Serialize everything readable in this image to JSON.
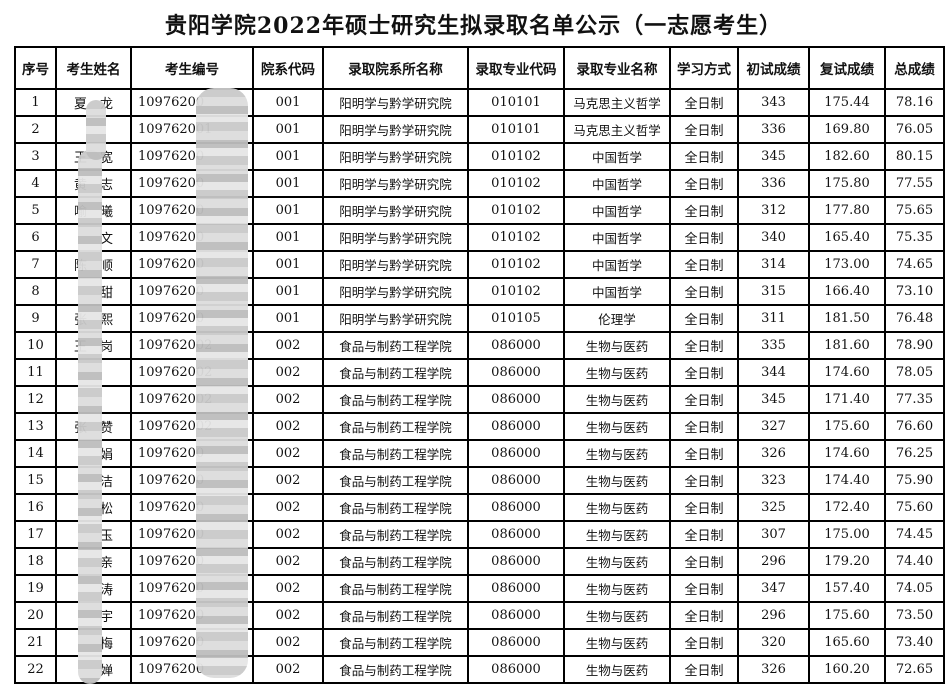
{
  "title": "贵阳学院2022年硕士研究生拟录取名单公示（一志愿考生）",
  "headers": [
    "序号",
    "考生姓名",
    "考生编号",
    "院系代码",
    "录取院系所名称",
    "录取专业代码",
    "录取专业名称",
    "学习方式",
    "初试成绩",
    "复试成绩",
    "总成绩"
  ],
  "rows": [
    [
      "1",
      "夏　龙",
      "10976200",
      "001",
      "阳明学与黔学研究院",
      "010101",
      "马克思主义哲学",
      "全日制",
      "343",
      "175.44",
      "78.16"
    ],
    [
      "2",
      "",
      "109762001",
      "001",
      "阳明学与黔学研究院",
      "010101",
      "马克思主义哲学",
      "全日制",
      "336",
      "169.80",
      "76.05"
    ],
    [
      "3",
      "王　宽",
      "10976200",
      "001",
      "阳明学与黔学研究院",
      "010102",
      "中国哲学",
      "全日制",
      "345",
      "182.60",
      "80.15"
    ],
    [
      "4",
      "黄　志",
      "10976200",
      "001",
      "阳明学与黔学研究院",
      "010102",
      "中国哲学",
      "全日制",
      "336",
      "175.80",
      "77.55"
    ],
    [
      "5",
      "喻　曦",
      "10976200",
      "001",
      "阳明学与黔学研究院",
      "010102",
      "中国哲学",
      "全日制",
      "312",
      "177.80",
      "75.65"
    ],
    [
      "6",
      "　　文",
      "10976200",
      "001",
      "阳明学与黔学研究院",
      "010102",
      "中国哲学",
      "全日制",
      "340",
      "165.40",
      "75.35"
    ],
    [
      "7",
      "陈　顺",
      "10976200",
      "001",
      "阳明学与黔学研究院",
      "010102",
      "中国哲学",
      "全日制",
      "314",
      "173.00",
      "74.65"
    ],
    [
      "8",
      "　　甜",
      "10976200",
      "001",
      "阳明学与黔学研究院",
      "010102",
      "中国哲学",
      "全日制",
      "315",
      "166.40",
      "73.10"
    ],
    [
      "9",
      "张　熙",
      "10976200",
      "001",
      "阳明学与黔学研究院",
      "010105",
      "伦理学",
      "全日制",
      "311",
      "181.50",
      "76.48"
    ],
    [
      "10",
      "王　岗",
      "109762002",
      "002",
      "食品与制药工程学院",
      "086000",
      "生物与医药",
      "全日制",
      "335",
      "181.60",
      "78.90"
    ],
    [
      "11",
      "",
      "109762002",
      "002",
      "食品与制药工程学院",
      "086000",
      "生物与医药",
      "全日制",
      "344",
      "174.60",
      "78.05"
    ],
    [
      "12",
      "",
      "109762002",
      "002",
      "食品与制药工程学院",
      "086000",
      "生物与医药",
      "全日制",
      "345",
      "171.40",
      "77.35"
    ],
    [
      "13",
      "张　赞",
      "109762002",
      "002",
      "食品与制药工程学院",
      "086000",
      "生物与医药",
      "全日制",
      "327",
      "175.60",
      "76.60"
    ],
    [
      "14",
      "　　娟",
      "10976200",
      "002",
      "食品与制药工程学院",
      "086000",
      "生物与医药",
      "全日制",
      "326",
      "174.60",
      "76.25"
    ],
    [
      "15",
      "　　洁",
      "10976200",
      "002",
      "食品与制药工程学院",
      "086000",
      "生物与医药",
      "全日制",
      "323",
      "174.40",
      "75.90"
    ],
    [
      "16",
      "　　松",
      "10976200",
      "002",
      "食品与制药工程学院",
      "086000",
      "生物与医药",
      "全日制",
      "325",
      "172.40",
      "75.60"
    ],
    [
      "17",
      "　　玉",
      "10976200",
      "002",
      "食品与制药工程学院",
      "086000",
      "生物与医药",
      "全日制",
      "307",
      "175.00",
      "74.45"
    ],
    [
      "18",
      "　　亲",
      "10976200",
      "002",
      "食品与制药工程学院",
      "086000",
      "生物与医药",
      "全日制",
      "296",
      "179.20",
      "74.40"
    ],
    [
      "19",
      "　　涛",
      "10976200",
      "002",
      "食品与制药工程学院",
      "086000",
      "生物与医药",
      "全日制",
      "347",
      "157.40",
      "74.05"
    ],
    [
      "20",
      "　　宇",
      "10976200",
      "002",
      "食品与制药工程学院",
      "086000",
      "生物与医药",
      "全日制",
      "296",
      "175.60",
      "73.50"
    ],
    [
      "21",
      "　　梅",
      "10976200",
      "002",
      "食品与制药工程学院",
      "086000",
      "生物与医药",
      "全日制",
      "320",
      "165.60",
      "73.40"
    ],
    [
      "22",
      "　　婵",
      "10976200",
      "002",
      "食品与制药工程学院",
      "086000",
      "生物与医药",
      "全日制",
      "326",
      "160.20",
      "72.65"
    ]
  ]
}
